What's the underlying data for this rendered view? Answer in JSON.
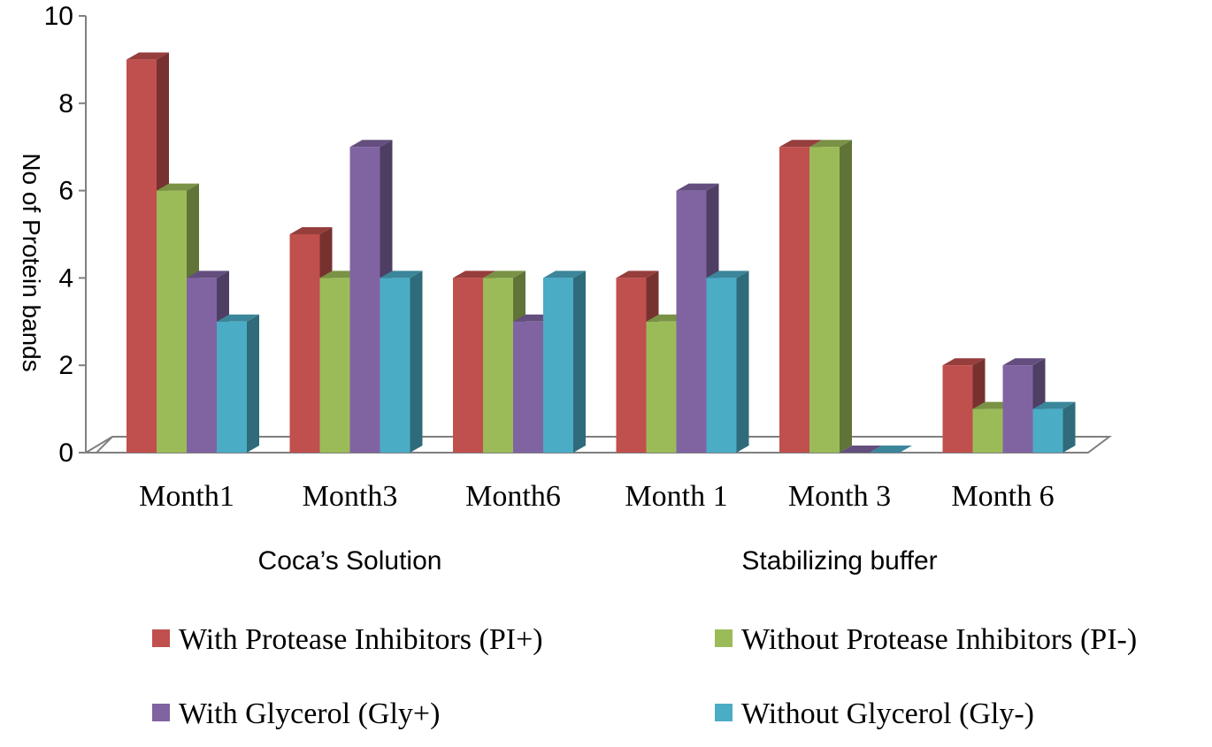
{
  "chart_data": {
    "type": "bar",
    "style": "3d-clustered-column",
    "categories": [
      "Month1",
      "Month3",
      "Month6",
      "Month 1",
      "Month 3",
      "Month 6"
    ],
    "groups": [
      {
        "label": "Coca’s Solution",
        "categories": [
          "Month1",
          "Month3",
          "Month6"
        ]
      },
      {
        "label": "Stabilizing buffer",
        "categories": [
          "Month 1",
          "Month 3",
          "Month 6"
        ]
      }
    ],
    "series": [
      {
        "name": "With Protease Inhibitors (PI+)",
        "color": "#c0504d",
        "values": [
          9,
          5,
          4,
          4,
          7,
          2
        ]
      },
      {
        "name": "Without Protease Inhibitors (PI-)",
        "color": "#9bbb59",
        "values": [
          6,
          4,
          4,
          3,
          7,
          1
        ]
      },
      {
        "name": "With Glycerol (Gly+)",
        "color": "#8064a2",
        "values": [
          4,
          7,
          3,
          6,
          0,
          2
        ]
      },
      {
        "name": "Without Glycerol (Gly-)",
        "color": "#4bacc6",
        "values": [
          3,
          4,
          4,
          4,
          0,
          1
        ]
      }
    ],
    "title": "",
    "xlabel": "",
    "ylabel": "No of Protein bands",
    "ylim": [
      0,
      10
    ],
    "yticks": [
      "0",
      "2",
      "4",
      "6",
      "8",
      "10"
    ],
    "grid": false,
    "legend": "bottom"
  }
}
